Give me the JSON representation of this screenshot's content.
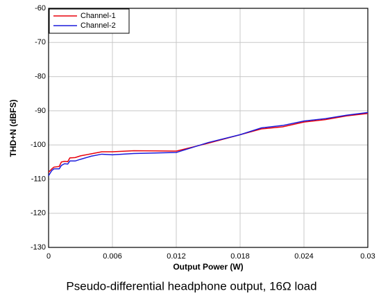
{
  "chart_data": {
    "type": "line",
    "xlabel": "Output Power (W)",
    "ylabel": "THD+N (dBFS)",
    "caption": "Pseudo-differential headphone output, 16Ω load",
    "x": [
      0,
      0.0003,
      0.0005,
      0.001,
      0.0012,
      0.0015,
      0.0018,
      0.002,
      0.0025,
      0.003,
      0.004,
      0.005,
      0.006,
      0.008,
      0.012,
      0.015,
      0.018,
      0.02,
      0.022,
      0.024,
      0.026,
      0.028,
      0.03
    ],
    "series": [
      {
        "name": "Channel-1",
        "color": "#e8000b",
        "values": [
          -108,
          -107,
          -106.5,
          -106.3,
          -105,
          -104.8,
          -104.9,
          -103.8,
          -103.7,
          -103.2,
          -102.6,
          -102,
          -102,
          -101.7,
          -101.8,
          -99.5,
          -97,
          -95.3,
          -94.7,
          -93.3,
          -92.6,
          -91.5,
          -90.8
        ]
      },
      {
        "name": "Channel-2",
        "color": "#1a1adc",
        "values": [
          -109,
          -107.5,
          -107,
          -107,
          -106,
          -105.5,
          -105.6,
          -104.7,
          -104.7,
          -104.2,
          -103.3,
          -102.7,
          -102.9,
          -102.5,
          -102.2,
          -99.3,
          -97,
          -95,
          -94.3,
          -93,
          -92.3,
          -91.3,
          -90.5
        ]
      }
    ],
    "xlim": [
      0,
      0.03
    ],
    "xticks": [
      0,
      0.006,
      0.012,
      0.018,
      0.024,
      0.03
    ],
    "ylim": [
      -130,
      -60
    ],
    "yticks": [
      -130,
      -120,
      -110,
      -100,
      -90,
      -80,
      -70,
      -60
    ],
    "grid": true,
    "legend": "upper left"
  }
}
